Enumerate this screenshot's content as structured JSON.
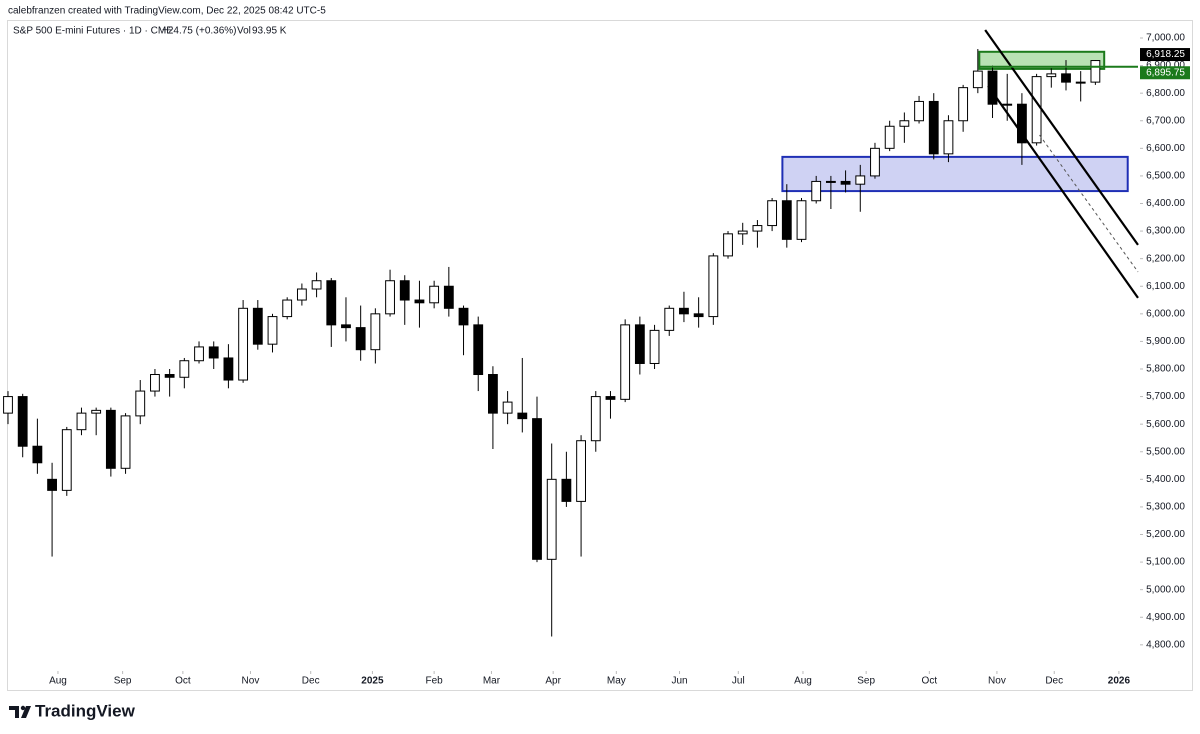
{
  "chart_data": {
    "type": "candlestick",
    "credit": "calebfranzen created with TradingView.com, Dec 22, 2025 08:42 UTC-5",
    "title": "S&P 500 E-mini Futures · 1D · CME",
    "change": "+24.75 (+0.36%)",
    "volume_label": "Vol",
    "volume": "93.95 K",
    "brand": "TradingView",
    "up_color": "#ffffff",
    "down_color": "#000000",
    "edge_color": "#000000",
    "open": [
      5640,
      5700,
      5520,
      5400,
      5360,
      5580,
      5640,
      5650,
      5440,
      5630,
      5720,
      5780,
      5770,
      5830,
      5880,
      5840,
      5760,
      6020,
      5890,
      5990,
      6050,
      6090,
      6120,
      5960,
      5950,
      5870,
      6000,
      6120,
      6050,
      6040,
      6100,
      6020,
      5960,
      5780,
      5640,
      5640,
      5620,
      5110,
      5400,
      5320,
      5540,
      5700,
      5690,
      5960,
      5820,
      5940,
      6020,
      6000,
      5990,
      6210,
      6290,
      6300,
      6320,
      6410,
      6270,
      6410,
      6480,
      6480,
      6470,
      6500,
      6600,
      6680,
      6700,
      6770,
      6580,
      6700,
      6820,
      6880,
      6760,
      6760,
      6620,
      6860,
      6870,
      6840,
      6840
    ],
    "high": [
      5720,
      5710,
      5620,
      5460,
      5590,
      5660,
      5660,
      5660,
      5640,
      5760,
      5800,
      5800,
      5840,
      5900,
      5900,
      5890,
      6050,
      6050,
      6000,
      6060,
      6110,
      6150,
      6130,
      6060,
      6030,
      6020,
      6160,
      6140,
      6120,
      6120,
      6170,
      6030,
      5990,
      5810,
      5720,
      5840,
      5700,
      5530,
      5500,
      5560,
      5720,
      5720,
      5980,
      5990,
      5960,
      6030,
      6080,
      6060,
      6220,
      6300,
      6330,
      6340,
      6420,
      6470,
      6420,
      6500,
      6500,
      6520,
      6540,
      6620,
      6700,
      6730,
      6790,
      6800,
      6720,
      6830,
      6960,
      6900,
      6870,
      6800,
      6870,
      6890,
      6920,
      6880,
      6920
    ],
    "low": [
      5600,
      5480,
      5420,
      5120,
      5340,
      5560,
      5560,
      5410,
      5420,
      5600,
      5700,
      5700,
      5730,
      5820,
      5800,
      5730,
      5750,
      5870,
      5860,
      5980,
      6030,
      6060,
      5880,
      5900,
      5830,
      5820,
      5990,
      5960,
      5950,
      6020,
      5990,
      5850,
      5720,
      5510,
      5600,
      5570,
      5100,
      4830,
      5300,
      5120,
      5500,
      5620,
      5680,
      5780,
      5800,
      5920,
      5970,
      5950,
      5960,
      6200,
      6250,
      6240,
      6300,
      6240,
      6260,
      6400,
      6380,
      6440,
      6370,
      6490,
      6590,
      6620,
      6690,
      6560,
      6550,
      6660,
      6800,
      6710,
      6700,
      6540,
      6610,
      6820,
      6810,
      6770,
      6830
    ],
    "close": [
      5700,
      5520,
      5460,
      5360,
      5580,
      5640,
      5650,
      5440,
      5630,
      5720,
      5780,
      5770,
      5830,
      5880,
      5840,
      5760,
      6020,
      5890,
      5990,
      6050,
      6090,
      6120,
      5960,
      5950,
      5870,
      6000,
      6120,
      6050,
      6040,
      6100,
      6020,
      5960,
      5780,
      5640,
      5680,
      5620,
      5110,
      5400,
      5320,
      5540,
      5700,
      5690,
      5960,
      5820,
      5940,
      6020,
      6000,
      5990,
      6210,
      6290,
      6300,
      6320,
      6410,
      6270,
      6410,
      6480,
      6480,
      6470,
      6500,
      6600,
      6680,
      6700,
      6770,
      6580,
      6700,
      6820,
      6880,
      6760,
      6760,
      6620,
      6860,
      6870,
      6840,
      6840,
      6918.25
    ],
    "xlim": [
      0,
      76.9
    ],
    "xticks": [
      {
        "value": 3.4,
        "label": "Aug"
      },
      {
        "value": 7.8,
        "label": "Sep"
      },
      {
        "value": 11.9,
        "label": "Oct"
      },
      {
        "value": 16.5,
        "label": "Nov"
      },
      {
        "value": 20.6,
        "label": "Dec"
      },
      {
        "value": 24.8,
        "label": "2025",
        "emphasis": true
      },
      {
        "value": 29.0,
        "label": "Feb"
      },
      {
        "value": 32.9,
        "label": "Mar"
      },
      {
        "value": 37.1,
        "label": "Apr"
      },
      {
        "value": 41.4,
        "label": "May"
      },
      {
        "value": 45.7,
        "label": "Jun"
      },
      {
        "value": 49.7,
        "label": "Jul"
      },
      {
        "value": 54.1,
        "label": "Aug"
      },
      {
        "value": 58.4,
        "label": "Sep"
      },
      {
        "value": 62.7,
        "label": "Oct"
      },
      {
        "value": 67.3,
        "label": "Nov"
      },
      {
        "value": 71.2,
        "label": "Dec"
      },
      {
        "value": 75.6,
        "label": "2026",
        "emphasis": true
      }
    ],
    "ylim": [
      4716,
      7058
    ],
    "yticks": [
      {
        "value": 4800,
        "label": "4,800.00"
      },
      {
        "value": 4900,
        "label": "4,900.00"
      },
      {
        "value": 5000,
        "label": "5,000.00"
      },
      {
        "value": 5100,
        "label": "5,100.00"
      },
      {
        "value": 5200,
        "label": "5,200.00"
      },
      {
        "value": 5300,
        "label": "5,300.00"
      },
      {
        "value": 5400,
        "label": "5,400.00"
      },
      {
        "value": 5500,
        "label": "5,500.00"
      },
      {
        "value": 5600,
        "label": "5,600.00"
      },
      {
        "value": 5700,
        "label": "5,700.00"
      },
      {
        "value": 5800,
        "label": "5,800.00"
      },
      {
        "value": 5900,
        "label": "5,900.00"
      },
      {
        "value": 6000,
        "label": "6,000.00"
      },
      {
        "value": 6100,
        "label": "6,100.00"
      },
      {
        "value": 6200,
        "label": "6,200.00"
      },
      {
        "value": 6300,
        "label": "6,300.00"
      },
      {
        "value": 6400,
        "label": "6,400.00"
      },
      {
        "value": 6500,
        "label": "6,500.00"
      },
      {
        "value": 6600,
        "label": "6,600.00"
      },
      {
        "value": 6700,
        "label": "6,700.00"
      },
      {
        "value": 6800,
        "label": "6,800.00"
      },
      {
        "value": 6900,
        "label": "6,900.00"
      },
      {
        "value": 7000,
        "label": "7,000.00"
      }
    ],
    "price_labels": [
      {
        "value": 6918.25,
        "label": "6,918.25",
        "color": "#000000"
      },
      {
        "value": 6895.75,
        "label": "6,895.75",
        "color": "#1b7a1b",
        "line_x": [
          66.1,
          76.9
        ]
      }
    ],
    "zones": [
      {
        "x": [
          66.1,
          74.6
        ],
        "y": [
          6888,
          6950
        ],
        "color": "#1b7a1b",
        "fill": "#b9e2b4"
      },
      {
        "x": [
          52.7,
          76.2
        ],
        "y": [
          6445,
          6569
        ],
        "color": "#1f2fb5",
        "fill": "#cfd2f3"
      }
    ],
    "trendlines": [
      {
        "x": [
          66.5,
          76.9
        ],
        "y": [
          7029,
          6250
        ],
        "color": "#000000",
        "dashed": false
      },
      {
        "x": [
          66.7,
          76.9
        ],
        "y": [
          6826,
          6058
        ],
        "color": "#000000",
        "dashed": false
      },
      {
        "x": [
          70.2,
          76.9
        ],
        "y": [
          6648,
          6152
        ],
        "color": "#555555",
        "dashed": true
      }
    ]
  }
}
